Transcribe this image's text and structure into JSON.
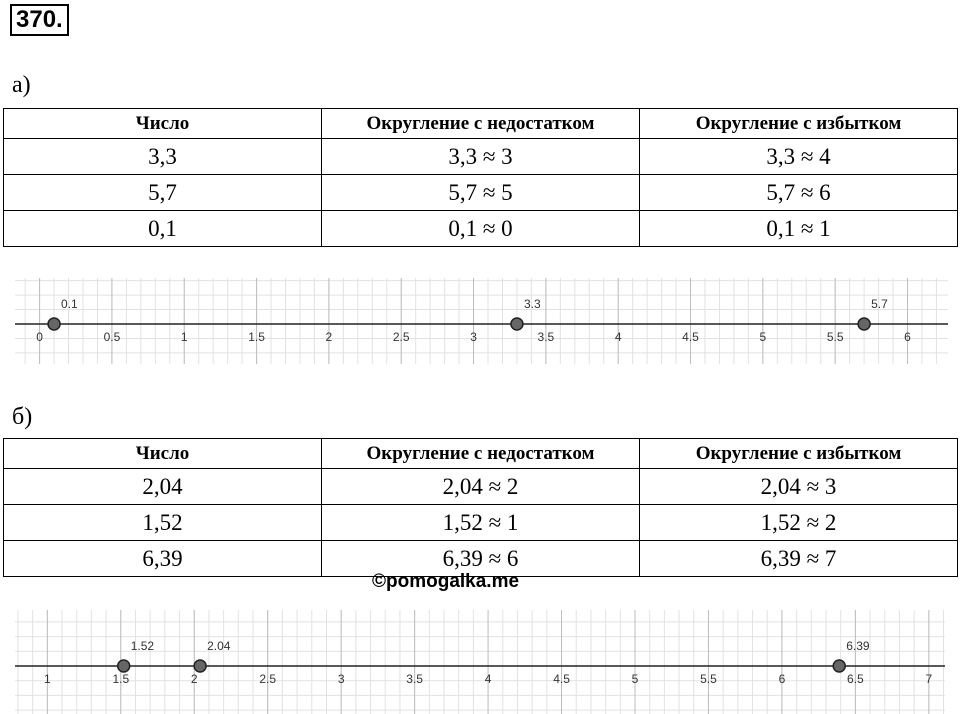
{
  "problem_number": "370.",
  "parts": [
    {
      "label": "а)",
      "table": {
        "header": [
          "Число",
          "Округление с недостатком",
          "Округление с избытком"
        ],
        "rows": [
          [
            "3,3",
            "3,3 ≈ 3",
            "3,3 ≈ 4"
          ],
          [
            "5,7",
            "5,7 ≈ 5",
            "5,7 ≈ 6"
          ],
          [
            "0,1",
            "0,1 ≈ 0",
            "0,1 ≈ 1"
          ]
        ]
      },
      "number_line": {
        "xlim": [
          -0.17,
          6.28
        ],
        "xticks": [
          0,
          0.5,
          1,
          1.5,
          2,
          2.5,
          3,
          3.5,
          4,
          4.5,
          5,
          5.5,
          6
        ],
        "points": [
          0.1,
          3.3,
          5.7
        ]
      }
    },
    {
      "label": "б)",
      "table": {
        "header": [
          "Число",
          "Округление с недостатком",
          "Округление с избытком"
        ],
        "rows": [
          [
            "2,04",
            "2,04 ≈ 2",
            "2,04 ≈ 3"
          ],
          [
            "1,52",
            "1,52 ≈ 1",
            "1,52 ≈ 2"
          ],
          [
            "6,39",
            "6,39 ≈ 6",
            "6,39 ≈ 7"
          ]
        ]
      },
      "number_line": {
        "xlim": [
          0.78,
          7.11
        ],
        "xticks": [
          1,
          1.5,
          2,
          2.5,
          3,
          3.5,
          4,
          4.5,
          5,
          5.5,
          6,
          6.5,
          7
        ],
        "points": [
          1.52,
          2.04,
          6.39
        ]
      }
    }
  ],
  "watermark": "©pomogalka.me"
}
